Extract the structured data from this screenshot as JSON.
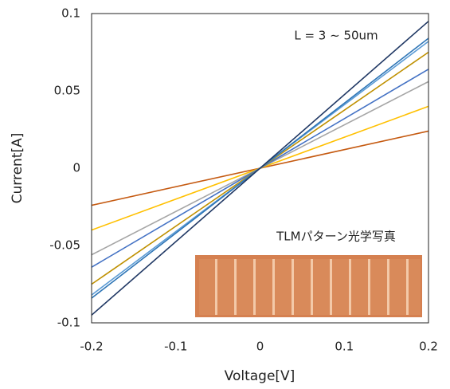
{
  "chart_data": {
    "type": "line",
    "x_label": "Voltage[V]",
    "y_label": "Current[A]",
    "annotations": [
      "L = 3 ~ 50um",
      "TLMパターン光学写真"
    ],
    "x": [
      -0.2,
      0.2
    ],
    "xlim": [
      -0.2,
      0.2
    ],
    "xticks": [
      -0.2,
      -0.1,
      0,
      0.1,
      0.2
    ],
    "ylim": [
      -0.1,
      0.1
    ],
    "yticks": [
      -0.1,
      -0.05,
      0,
      0.05,
      0.1
    ],
    "grid": false,
    "series": [
      {
        "color": "#c55a11",
        "values": [
          -0.024,
          0.024
        ]
      },
      {
        "color": "#ffc000",
        "values": [
          -0.04,
          0.04
        ]
      },
      {
        "color": "#a5a5a5",
        "values": [
          -0.056,
          0.056
        ]
      },
      {
        "color": "#4472c4",
        "values": [
          -0.064,
          0.064
        ]
      },
      {
        "color": "#bf9000",
        "values": [
          -0.075,
          0.075
        ]
      },
      {
        "color": "#5b9bd5",
        "values": [
          -0.082,
          0.082
        ]
      },
      {
        "color": "#2e75b6",
        "values": [
          -0.084,
          0.084
        ]
      },
      {
        "color": "#203864",
        "values": [
          -0.095,
          0.095
        ]
      }
    ]
  }
}
